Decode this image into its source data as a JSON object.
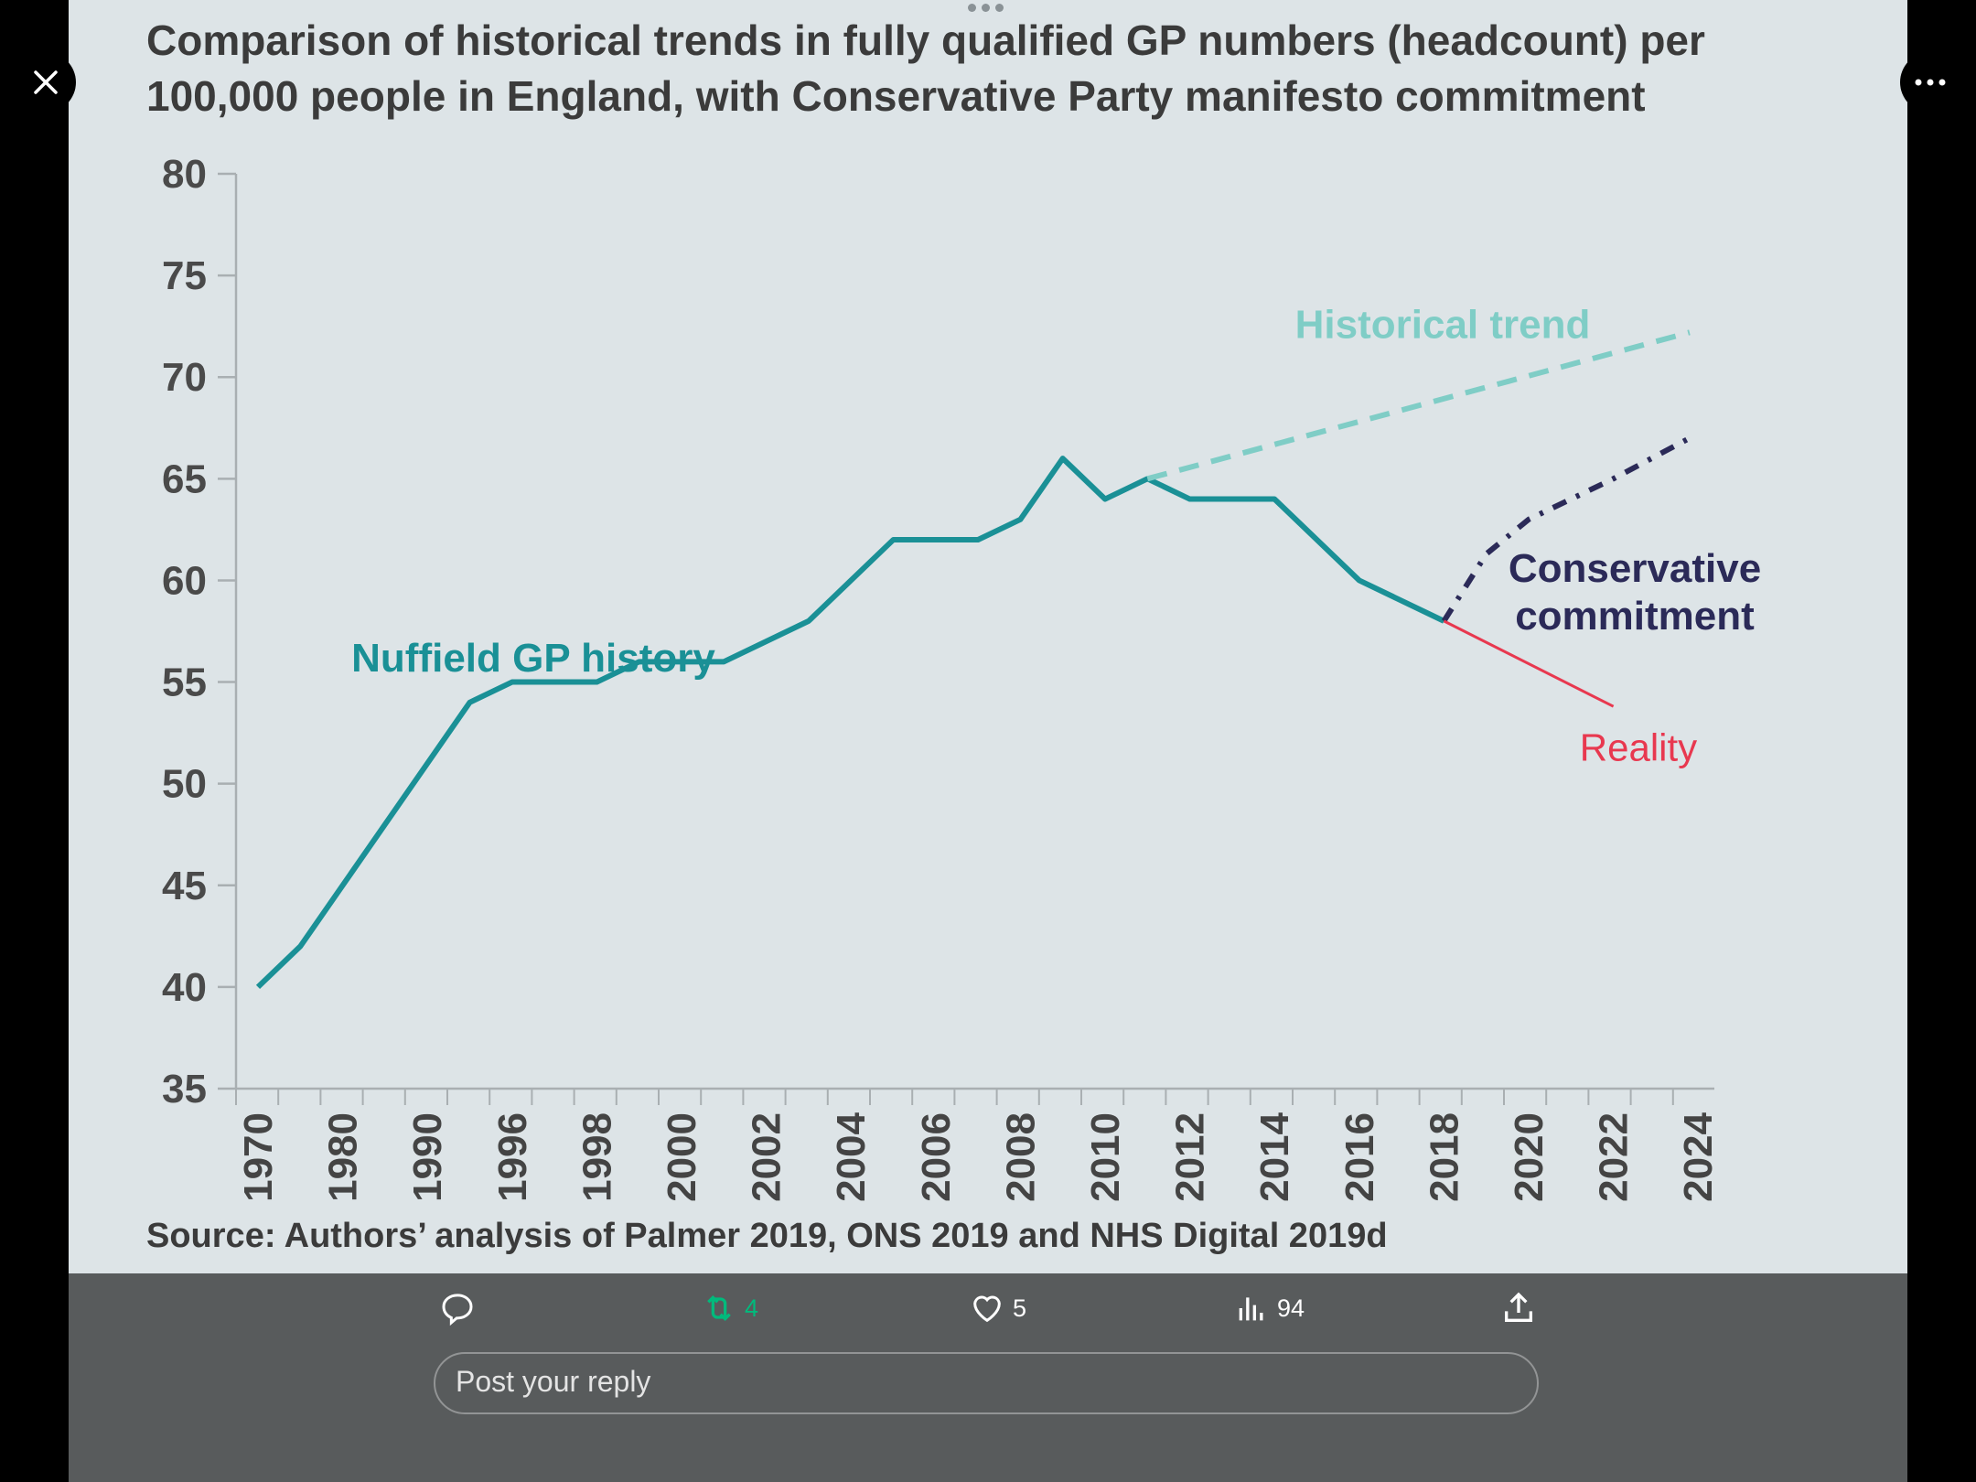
{
  "title_line1": "Comparison of historical trends in fully qualified GP numbers (headcount) per",
  "title_line2": "100,000 people in England, with Conservative Party manifesto commitment",
  "source": "Source: Authors’ analysis of Palmer 2019, ONS 2019 and NHS Digital 2019d",
  "chart_data": {
    "type": "line",
    "title": "Comparison of historical trends in fully qualified GP numbers (headcount) per 100,000 people in England, with Conservative Party manifesto commitment",
    "xlabel": "",
    "ylabel": "",
    "ylim": [
      35,
      80
    ],
    "yticks": [
      "80",
      "75",
      "70",
      "65",
      "60",
      "55",
      "50",
      "45",
      "40",
      "35"
    ],
    "x_tick_labels": [
      "1970",
      "1980",
      "1990",
      "1996",
      "1998",
      "2000",
      "2002",
      "2004",
      "2006",
      "2008",
      "2010",
      "2012",
      "2014",
      "2016",
      "2018",
      "2020",
      "2022",
      "2024"
    ],
    "x_note": "x values are positions on the category axis (0 = 1970 label, 17 = 2024 label)",
    "grid": false,
    "series": [
      {
        "name": "Nuffield GP history",
        "color": "#1a9096",
        "style": "solid",
        "x": [
          0,
          0.5,
          2.5,
          3,
          4,
          4.5,
          5.5,
          6.5,
          7.5,
          8.5,
          9,
          9.5,
          10,
          10.5,
          11,
          12,
          13,
          14
        ],
        "y": [
          40,
          42,
          54,
          55,
          55,
          56,
          56,
          58,
          62,
          62,
          63,
          66,
          64,
          65,
          64,
          64,
          60,
          58
        ]
      },
      {
        "name": "Historical trend",
        "color": "#7fcdc6",
        "style": "dashed",
        "x": [
          10.5,
          16.9
        ],
        "y": [
          65,
          72.2
        ]
      },
      {
        "name": "Conservative commitment",
        "color": "#2b2a58",
        "style": "dashdot",
        "x": [
          14,
          14.5,
          15,
          16,
          16.9
        ],
        "y": [
          58,
          61.3,
          63,
          65,
          67
        ]
      },
      {
        "name": "Reality",
        "color": "#e8384f",
        "style": "solid-thin",
        "x": [
          14,
          16
        ],
        "y": [
          58,
          53.8
        ]
      }
    ],
    "annotations": [
      "Nuffield GP history",
      "Historical trend",
      "Conservative commitment",
      "Reality"
    ]
  },
  "actions": {
    "reply_count": "",
    "retweets": "4",
    "likes": "5",
    "views": "94"
  },
  "reply_placeholder": "Post your reply",
  "colors": {
    "retweet": "#00ba7c",
    "panel": "#dde4e7"
  }
}
